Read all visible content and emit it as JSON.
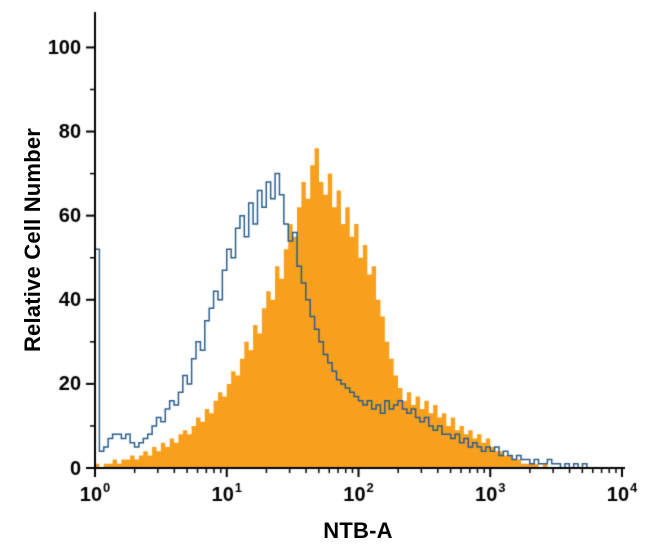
{
  "chart_data": {
    "type": "histogram-overlay",
    "title": "",
    "xlabel": "NTB-A",
    "ylabel": "Relative Cell Number",
    "x_scale": "log10",
    "x_range_exponents": [
      0,
      4
    ],
    "x_tick_base": "10",
    "x_tick_exponents": [
      0,
      1,
      2,
      3,
      4
    ],
    "y_ticks": [
      0,
      20,
      40,
      60,
      80,
      100
    ],
    "y_minor_step": 10,
    "y_max": 107,
    "grid": false,
    "legend": "none",
    "axis_color": "#000000",
    "background": "#ffffff",
    "bins": 120,
    "series": [
      {
        "id": "filled-orange-histogram",
        "style": "filled",
        "color": "#F8A01D",
        "values": [
          1,
          0,
          1,
          1,
          2,
          1,
          2,
          2,
          3,
          2,
          3,
          4,
          3,
          5,
          4,
          6,
          5,
          7,
          6,
          8,
          9,
          8,
          10,
          12,
          11,
          14,
          13,
          16,
          18,
          17,
          20,
          23,
          22,
          26,
          30,
          28,
          34,
          32,
          38,
          42,
          40,
          48,
          45,
          52,
          58,
          55,
          62,
          68,
          64,
          72,
          76,
          68,
          65,
          70,
          62,
          66,
          58,
          62,
          55,
          58,
          50,
          53,
          46,
          48,
          40,
          36,
          30,
          26,
          22,
          19,
          16,
          18,
          15,
          17,
          14,
          16,
          13,
          15,
          12,
          13,
          10,
          12,
          9,
          10,
          8,
          9,
          7,
          8,
          6,
          7,
          5,
          4,
          4,
          3,
          3,
          2,
          2,
          1,
          1,
          1,
          1,
          0,
          1,
          0,
          0,
          0,
          0,
          0,
          0,
          0,
          0,
          0,
          0,
          0,
          0,
          0,
          0,
          0,
          0,
          0
        ]
      },
      {
        "id": "open-blue-histogram",
        "style": "line",
        "color": "#2B5E8C",
        "values": [
          52,
          4,
          5,
          7,
          8,
          8,
          7,
          8,
          6,
          5,
          6,
          7,
          8,
          10,
          12,
          11,
          14,
          16,
          15,
          18,
          22,
          20,
          26,
          30,
          28,
          35,
          38,
          42,
          40,
          47,
          52,
          50,
          57,
          60,
          55,
          63,
          58,
          66,
          62,
          68,
          64,
          70,
          65,
          58,
          54,
          56,
          48,
          44,
          40,
          36,
          33,
          30,
          27,
          25,
          23,
          21,
          20,
          19,
          18,
          17,
          16,
          15,
          16,
          14,
          15,
          13,
          16,
          14,
          15,
          16,
          14,
          13,
          14,
          12,
          11,
          12,
          10,
          9,
          10,
          8,
          8,
          7,
          8,
          6,
          7,
          5,
          6,
          5,
          4,
          5,
          4,
          5,
          3,
          4,
          3,
          2,
          3,
          2,
          2,
          1,
          2,
          1,
          1,
          2,
          1,
          1,
          0,
          1,
          0,
          1,
          0,
          1,
          0,
          0,
          0,
          0,
          0,
          0,
          0,
          0
        ]
      }
    ]
  }
}
